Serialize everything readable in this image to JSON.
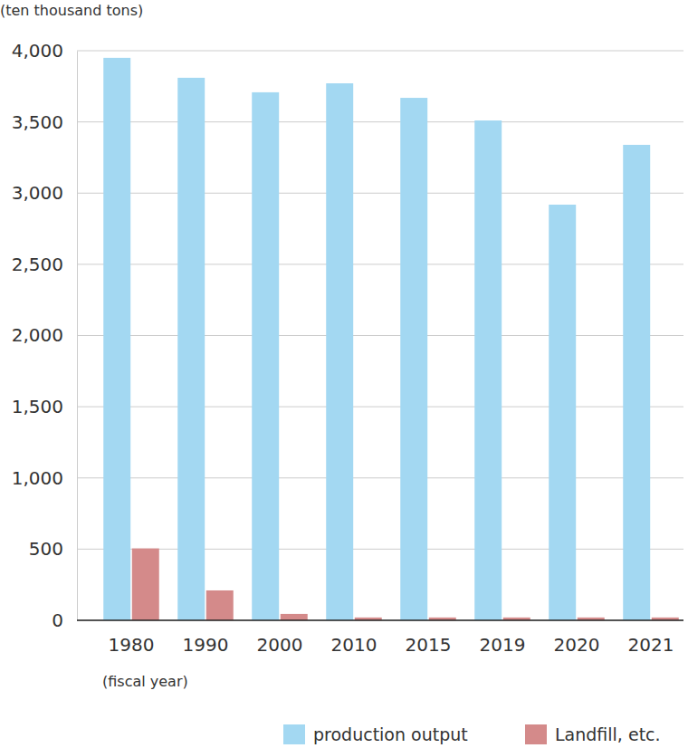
{
  "chart_data": {
    "type": "bar",
    "y_label": "(ten thousand tons)",
    "x_label": "(fiscal year)",
    "categories": [
      "1980",
      "1990",
      "2000",
      "2010",
      "2015",
      "2019",
      "2020",
      "2021"
    ],
    "series": [
      {
        "name": "production output",
        "color": "#a3d8f2",
        "values": [
          3950,
          3810,
          3708,
          3771,
          3669,
          3510,
          2919,
          3339
        ]
      },
      {
        "name": "Landfill, etc.",
        "color": "#d48a8a",
        "values": [
          505,
          210,
          45,
          20,
          20,
          20,
          20,
          20
        ]
      }
    ],
    "ylim": [
      0,
      4000
    ],
    "yticks": [
      0,
      500,
      {
        "value": 1000,
        "label": "1,000"
      },
      {
        "value": 1500,
        "label": "1,500"
      },
      {
        "value": 2000,
        "label": "2,000"
      },
      {
        "value": 2500,
        "label": "2,500"
      },
      {
        "value": 3000,
        "label": "3,000"
      },
      {
        "value": 3500,
        "label": "3,500"
      },
      {
        "value": 4000,
        "label": "4,000"
      }
    ],
    "grid": true,
    "legend": "bottom-right"
  }
}
